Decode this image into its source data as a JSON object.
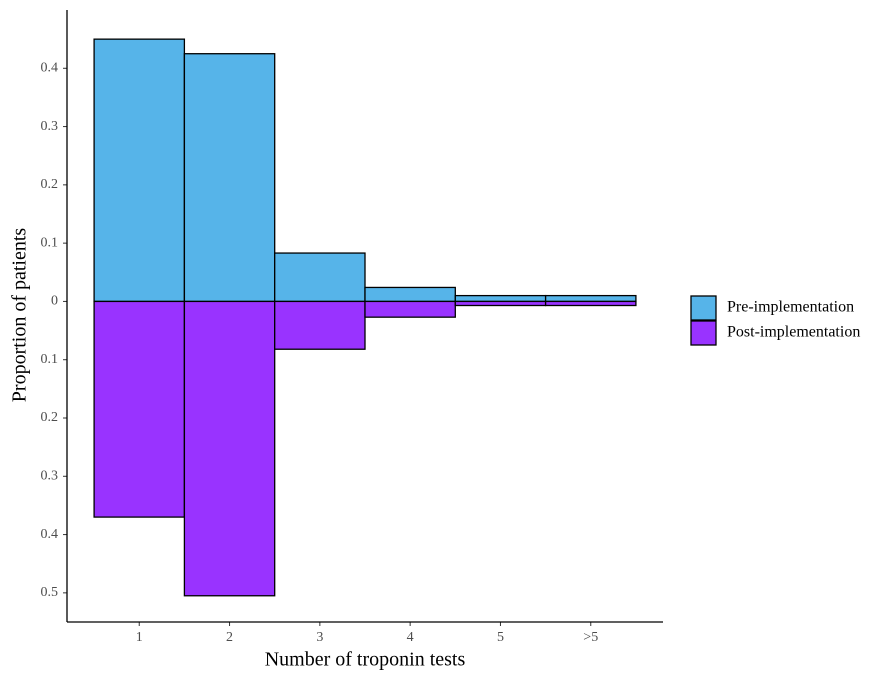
{
  "chart_data": {
    "type": "bar",
    "x_label": "Number of troponin tests",
    "y_label": "Proportion of patients",
    "categories": [
      "1",
      "2",
      "3",
      "4",
      "5",
      ">5"
    ],
    "series": [
      {
        "name": "Pre-implementation",
        "color": "#56b4e9",
        "values": [
          0.45,
          0.425,
          0.083,
          0.024,
          0.01,
          0.01
        ]
      },
      {
        "name": "Post-implementation",
        "color": "#9933ff",
        "values": [
          -0.37,
          -0.505,
          -0.082,
          -0.027,
          -0.007,
          -0.007
        ]
      }
    ],
    "ylim": [
      -0.55,
      0.5
    ],
    "yticks": [
      0.4,
      0.3,
      0.2,
      0.1,
      0,
      {
        "value": -0.1,
        "label": "0.1"
      },
      {
        "value": -0.2,
        "label": "0.2"
      },
      {
        "value": -0.3,
        "label": "0.3"
      },
      {
        "value": -0.4,
        "label": "0.4"
      },
      {
        "value": -0.5,
        "label": "0.5"
      }
    ],
    "grid": false,
    "legend": "right"
  }
}
